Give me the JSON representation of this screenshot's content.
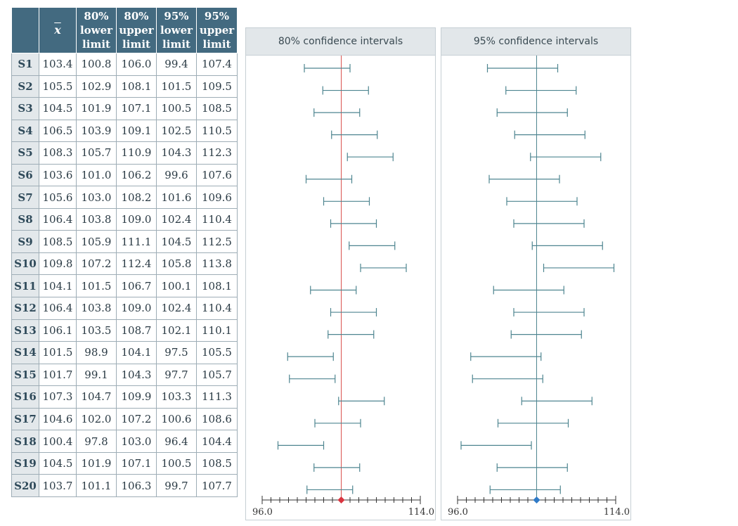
{
  "table": {
    "headers": {
      "mean": "x",
      "lower80": [
        "80%",
        "lower",
        "limit"
      ],
      "upper80": [
        "80%",
        "upper",
        "limit"
      ],
      "lower95": [
        "95%",
        "lower",
        "limit"
      ],
      "upper95": [
        "95%",
        "upper",
        "limit"
      ]
    },
    "rows": [
      {
        "sample": "S1",
        "mean": "103.4",
        "lower80": "100.8",
        "upper80": "106.0",
        "lower95": "99.4",
        "upper95": "107.4"
      },
      {
        "sample": "S2",
        "mean": "105.5",
        "lower80": "102.9",
        "upper80": "108.1",
        "lower95": "101.5",
        "upper95": "109.5"
      },
      {
        "sample": "S3",
        "mean": "104.5",
        "lower80": "101.9",
        "upper80": "107.1",
        "lower95": "100.5",
        "upper95": "108.5"
      },
      {
        "sample": "S4",
        "mean": "106.5",
        "lower80": "103.9",
        "upper80": "109.1",
        "lower95": "102.5",
        "upper95": "110.5"
      },
      {
        "sample": "S5",
        "mean": "108.3",
        "lower80": "105.7",
        "upper80": "110.9",
        "lower95": "104.3",
        "upper95": "112.3"
      },
      {
        "sample": "S6",
        "mean": "103.6",
        "lower80": "101.0",
        "upper80": "106.2",
        "lower95": "99.6",
        "upper95": "107.6"
      },
      {
        "sample": "S7",
        "mean": "105.6",
        "lower80": "103.0",
        "upper80": "108.2",
        "lower95": "101.6",
        "upper95": "109.6"
      },
      {
        "sample": "S8",
        "mean": "106.4",
        "lower80": "103.8",
        "upper80": "109.0",
        "lower95": "102.4",
        "upper95": "110.4"
      },
      {
        "sample": "S9",
        "mean": "108.5",
        "lower80": "105.9",
        "upper80": "111.1",
        "lower95": "104.5",
        "upper95": "112.5"
      },
      {
        "sample": "S10",
        "mean": "109.8",
        "lower80": "107.2",
        "upper80": "112.4",
        "lower95": "105.8",
        "upper95": "113.8"
      },
      {
        "sample": "S11",
        "mean": "104.1",
        "lower80": "101.5",
        "upper80": "106.7",
        "lower95": "100.1",
        "upper95": "108.1"
      },
      {
        "sample": "S12",
        "mean": "106.4",
        "lower80": "103.8",
        "upper80": "109.0",
        "lower95": "102.4",
        "upper95": "110.4"
      },
      {
        "sample": "S13",
        "mean": "106.1",
        "lower80": "103.5",
        "upper80": "108.7",
        "lower95": "102.1",
        "upper95": "110.1"
      },
      {
        "sample": "S14",
        "mean": "101.5",
        "lower80": "98.9",
        "upper80": "104.1",
        "lower95": "97.5",
        "upper95": "105.5"
      },
      {
        "sample": "S15",
        "mean": "101.7",
        "lower80": "99.1",
        "upper80": "104.3",
        "lower95": "97.7",
        "upper95": "105.7"
      },
      {
        "sample": "S16",
        "mean": "107.3",
        "lower80": "104.7",
        "upper80": "109.9",
        "lower95": "103.3",
        "upper95": "111.3"
      },
      {
        "sample": "S17",
        "mean": "104.6",
        "lower80": "102.0",
        "upper80": "107.2",
        "lower95": "100.6",
        "upper95": "108.6"
      },
      {
        "sample": "S18",
        "mean": "100.4",
        "lower80": "97.8",
        "upper80": "103.0",
        "lower95": "96.4",
        "upper95": "104.4"
      },
      {
        "sample": "S19",
        "mean": "104.5",
        "lower80": "101.9",
        "upper80": "107.1",
        "lower95": "100.5",
        "upper95": "108.5"
      },
      {
        "sample": "S20",
        "mean": "103.7",
        "lower80": "101.1",
        "upper80": "106.3",
        "lower95": "99.7",
        "upper95": "107.7"
      }
    ]
  },
  "chart_data": [
    {
      "type": "interval",
      "title": "80% confidence intervals",
      "samples": [
        "S1",
        "S2",
        "S3",
        "S4",
        "S5",
        "S6",
        "S7",
        "S8",
        "S9",
        "S10",
        "S11",
        "S12",
        "S13",
        "S14",
        "S15",
        "S16",
        "S17",
        "S18",
        "S19",
        "S20"
      ],
      "lower": [
        100.8,
        102.9,
        101.9,
        103.9,
        105.7,
        101.0,
        103.0,
        103.8,
        105.9,
        107.2,
        101.5,
        103.8,
        103.5,
        98.9,
        99.1,
        104.7,
        102.0,
        97.8,
        101.9,
        101.1
      ],
      "upper": [
        106.0,
        108.1,
        107.1,
        109.1,
        110.9,
        106.2,
        108.2,
        109.0,
        111.1,
        112.4,
        106.7,
        109.0,
        108.7,
        104.1,
        104.3,
        109.9,
        107.2,
        103.0,
        107.1,
        106.3
      ],
      "reference": 105,
      "xlim": [
        96,
        114
      ],
      "x_tick_labels": [
        "96.0",
        "114.0"
      ],
      "tick_step": 1,
      "line_color": "#4e8590",
      "reference_color": "#d9534f",
      "marker_color": "#d9343f"
    },
    {
      "type": "interval",
      "title": "95% confidence intervals",
      "samples": [
        "S1",
        "S2",
        "S3",
        "S4",
        "S5",
        "S6",
        "S7",
        "S8",
        "S9",
        "S10",
        "S11",
        "S12",
        "S13",
        "S14",
        "S15",
        "S16",
        "S17",
        "S18",
        "S19",
        "S20"
      ],
      "lower": [
        99.4,
        101.5,
        100.5,
        102.5,
        104.3,
        99.6,
        101.6,
        102.4,
        104.5,
        105.8,
        100.1,
        102.4,
        102.1,
        97.5,
        97.7,
        103.3,
        100.6,
        96.4,
        100.5,
        99.7
      ],
      "upper": [
        107.4,
        109.5,
        108.5,
        110.5,
        112.3,
        107.6,
        109.6,
        110.4,
        112.5,
        113.8,
        108.1,
        110.4,
        110.1,
        105.5,
        105.7,
        111.3,
        108.6,
        104.4,
        108.5,
        107.7
      ],
      "reference": 105,
      "xlim": [
        96,
        114
      ],
      "x_tick_labels": [
        "96.0",
        "114.0"
      ],
      "tick_step": 1,
      "line_color": "#4e8590",
      "reference_color": "#4e8590",
      "marker_color": "#2f7bc7"
    }
  ]
}
